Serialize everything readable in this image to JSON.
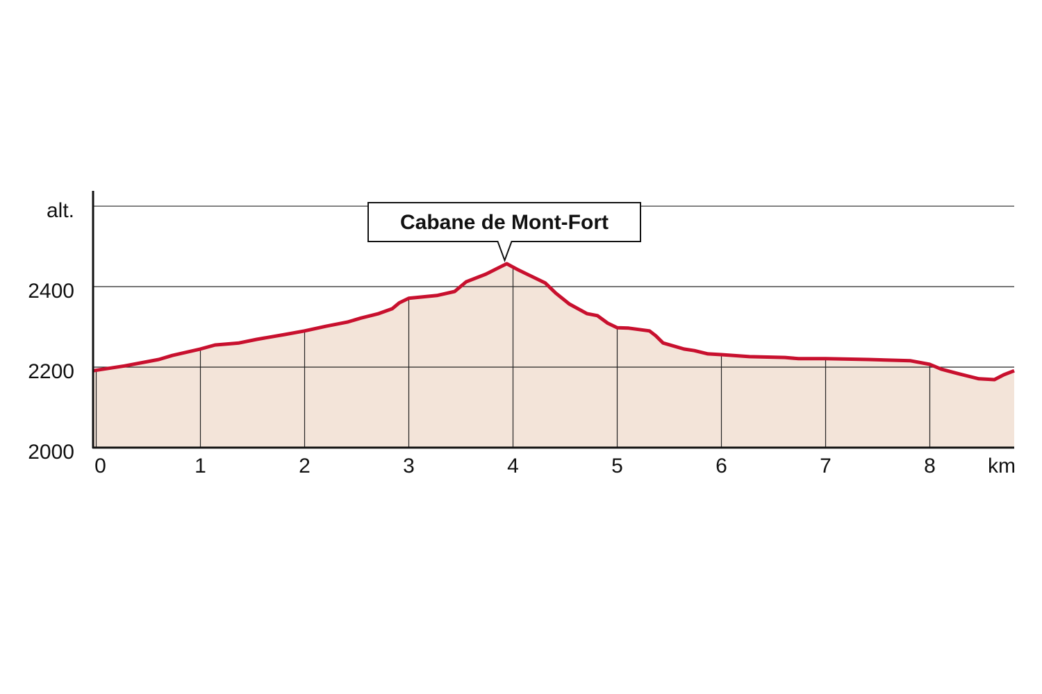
{
  "chart_data": {
    "type": "area",
    "annotation": {
      "text": "Cabane de Mont-Fort",
      "x": 3.92,
      "y": 2455
    },
    "x_label": "km",
    "x": [
      -0.03,
      0.27,
      0.6,
      0.73,
      1.0,
      1.14,
      1.37,
      1.54,
      1.81,
      2.0,
      2.21,
      2.41,
      2.54,
      2.71,
      2.84,
      2.91,
      3.0,
      3.27,
      3.44,
      3.55,
      3.74,
      3.87,
      3.94,
      4.04,
      4.31,
      4.41,
      4.54,
      4.71,
      4.81,
      4.91,
      5.0,
      5.11,
      5.31,
      5.37,
      5.44,
      5.64,
      5.74,
      5.87,
      6.0,
      6.27,
      6.61,
      6.74,
      7.0,
      7.41,
      7.81,
      8.0,
      8.11,
      8.27,
      8.47,
      8.62,
      8.71,
      8.81
    ],
    "values": [
      2191,
      2203,
      2219,
      2229,
      2245,
      2255,
      2260,
      2269,
      2281,
      2290,
      2302,
      2312,
      2322,
      2333,
      2345,
      2360,
      2371,
      2378,
      2388,
      2412,
      2431,
      2448,
      2457,
      2443,
      2409,
      2384,
      2357,
      2333,
      2328,
      2309,
      2298,
      2297,
      2290,
      2278,
      2260,
      2245,
      2241,
      2233,
      2231,
      2226,
      2224,
      2221,
      2221,
      2219,
      2216,
      2207,
      2195,
      2184,
      2171,
      2169,
      2181,
      2191
    ],
    "color": "#c8102e",
    "fill": "#f3e4d9",
    "xlim": [
      -0.03,
      8.81
    ],
    "xticks": [
      0,
      1,
      2,
      3,
      4,
      5,
      6,
      7,
      8
    ],
    "ylim": [
      2000,
      2638
    ],
    "yticks": [
      2000,
      2200,
      2400,
      {
        "value": 2600,
        "label": "alt."
      }
    ],
    "grid": true
  }
}
